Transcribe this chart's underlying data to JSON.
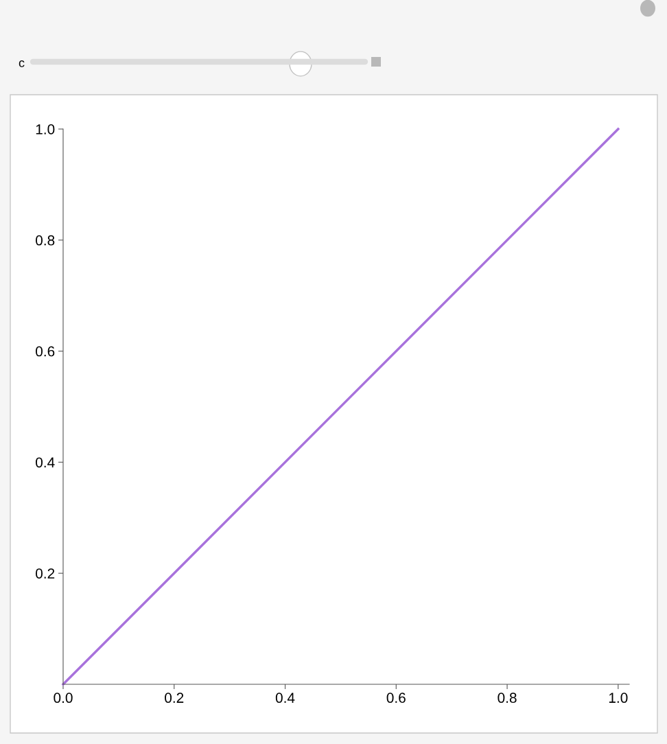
{
  "chart_data": {
    "type": "line",
    "x": [
      0,
      1
    ],
    "series": [
      {
        "color": "#a872dc",
        "values": [
          0,
          1
        ]
      }
    ],
    "xlim": [
      0,
      1.02
    ],
    "ylim": [
      0,
      1
    ],
    "xticks": [
      {
        "value": 0,
        "label": "0.0"
      },
      {
        "value": 0.2,
        "label": "0.2"
      },
      {
        "value": 0.4,
        "label": "0.4"
      },
      {
        "value": 0.6,
        "label": "0.6"
      },
      {
        "value": 0.8,
        "label": "0.8"
      },
      {
        "value": 1,
        "label": "1.0"
      }
    ],
    "yticks": [
      {
        "value": 0.2,
        "label": "0.2"
      },
      {
        "value": 0.4,
        "label": "0.4"
      },
      {
        "value": 0.6,
        "label": "0.6"
      },
      {
        "value": 0.8,
        "label": "0.8"
      },
      {
        "value": 1,
        "label": "1.0"
      }
    ],
    "annotations": [
      "c"
    ],
    "grid": false,
    "legend": false,
    "marker": "none",
    "line_style": "solid"
  }
}
